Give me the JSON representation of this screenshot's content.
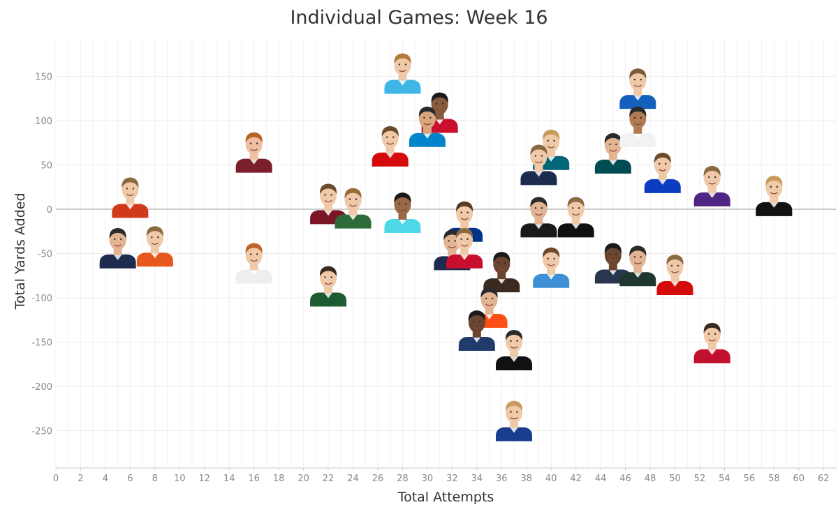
{
  "chart_data": {
    "type": "scatter",
    "title": "Individual Games: Week 16",
    "xlabel": "Total Attempts",
    "ylabel": "Total Yards Added",
    "xlim": [
      0,
      63
    ],
    "ylim": [
      -292,
      192
    ],
    "x_ticks": [
      0,
      2,
      4,
      6,
      8,
      10,
      12,
      14,
      16,
      18,
      20,
      22,
      24,
      26,
      28,
      30,
      32,
      34,
      36,
      38,
      40,
      42,
      44,
      46,
      48,
      50,
      52,
      54,
      56,
      58,
      60,
      62
    ],
    "y_ticks": [
      -250,
      -200,
      -150,
      -100,
      -50,
      0,
      50,
      100,
      150
    ],
    "grid": true,
    "zero_line": true,
    "marker": "player-headshot",
    "points": [
      {
        "x": 28,
        "y": 142,
        "jersey": "#3fb7e6",
        "skin": "#f0c9a8",
        "hair": "#b07a3c"
      },
      {
        "x": 31,
        "y": 98,
        "jersey": "#c8102e",
        "skin": "#8a5a3c",
        "hair": "#1a1a1a"
      },
      {
        "x": 30,
        "y": 82,
        "jersey": "#0085ca",
        "skin": "#d9a77f",
        "hair": "#2a2a2a"
      },
      {
        "x": 27,
        "y": 60,
        "jersey": "#d50a0a",
        "skin": "#f0c9a8",
        "hair": "#6b4b2a"
      },
      {
        "x": 16,
        "y": 53,
        "jersey": "#7a1f2b",
        "skin": "#eebfa0",
        "hair": "#b5651d"
      },
      {
        "x": 40,
        "y": 56,
        "jersey": "#006778",
        "skin": "#f0c9a8",
        "hair": "#c99a5b"
      },
      {
        "x": 39,
        "y": 39,
        "jersey": "#1d2b4f",
        "skin": "#f0c9a8",
        "hair": "#8a6a40"
      },
      {
        "x": 45,
        "y": 52,
        "jersey": "#004c54",
        "skin": "#e3b493",
        "hair": "#2a2a2a"
      },
      {
        "x": 47,
        "y": 125,
        "jersey": "#1560bd",
        "skin": "#f0c9a8",
        "hair": "#7a5a38"
      },
      {
        "x": 47,
        "y": 82,
        "jersey": "#f2f2f2",
        "skin": "#b07a55",
        "hair": "#2a2a2a"
      },
      {
        "x": 49,
        "y": 30,
        "jersey": "#0b3cc1",
        "skin": "#f0c9a8",
        "hair": "#6b4b2a"
      },
      {
        "x": 53,
        "y": 15,
        "jersey": "#4f2683",
        "skin": "#f0c9a8",
        "hair": "#8a6a40"
      },
      {
        "x": 58,
        "y": 4,
        "jersey": "#111111",
        "skin": "#f0c9a8",
        "hair": "#c99a5b"
      },
      {
        "x": 6,
        "y": 2,
        "jersey": "#d03a1c",
        "skin": "#f0c9a8",
        "hair": "#8a6a40"
      },
      {
        "x": 22,
        "y": -5,
        "jersey": "#7a1526",
        "skin": "#f0c9a8",
        "hair": "#6b4b2a"
      },
      {
        "x": 24,
        "y": -10,
        "jersey": "#2f6b3a",
        "skin": "#f0c9a8",
        "hair": "#9a6a3a"
      },
      {
        "x": 28,
        "y": -15,
        "jersey": "#4fd8e8",
        "skin": "#9a6a48",
        "hair": "#1a1a1a"
      },
      {
        "x": 33,
        "y": -25,
        "jersey": "#00338d",
        "skin": "#f0c9a8",
        "hair": "#5a3a22"
      },
      {
        "x": 39,
        "y": -20,
        "jersey": "#1a1a1a",
        "skin": "#e3b493",
        "hair": "#2a2a2a"
      },
      {
        "x": 42,
        "y": -20,
        "jersey": "#111111",
        "skin": "#f0c9a8",
        "hair": "#8a6a40"
      },
      {
        "x": 5,
        "y": -55,
        "jersey": "#1d2b4f",
        "skin": "#e3b493",
        "hair": "#2a2a2a"
      },
      {
        "x": 8,
        "y": -53,
        "jersey": "#e55a1c",
        "skin": "#f0c9a8",
        "hair": "#8a6a40"
      },
      {
        "x": 16,
        "y": -72,
        "jersey": "#eeeeee",
        "skin": "#f0c9a8",
        "hair": "#c0622a"
      },
      {
        "x": 32,
        "y": -57,
        "jersey": "#1d2b4f",
        "skin": "#e3b493",
        "hair": "#2a2a2a"
      },
      {
        "x": 33,
        "y": -55,
        "jersey": "#c8102e",
        "skin": "#f0c9a8",
        "hair": "#8a6a40"
      },
      {
        "x": 36,
        "y": -82,
        "jersey": "#3a2a20",
        "skin": "#6b4530",
        "hair": "#1a1a1a"
      },
      {
        "x": 40,
        "y": -77,
        "jersey": "#3e8fd6",
        "skin": "#f0c9a8",
        "hair": "#6b4b2a"
      },
      {
        "x": 45,
        "y": -72,
        "jersey": "#2a3550",
        "skin": "#6b4530",
        "hair": "#1a1a1a"
      },
      {
        "x": 47,
        "y": -75,
        "jersey": "#203731",
        "skin": "#e3b493",
        "hair": "#2a2a2a"
      },
      {
        "x": 50,
        "y": -85,
        "jersey": "#d50a0a",
        "skin": "#f0c9a8",
        "hair": "#8a6a40"
      },
      {
        "x": 22,
        "y": -98,
        "jersey": "#1e5a32",
        "skin": "#f0c9a8",
        "hair": "#3a2a20"
      },
      {
        "x": 35,
        "y": -122,
        "jersey": "#fb4f14",
        "skin": "#e3b493",
        "hair": "#2a2a2a"
      },
      {
        "x": 34,
        "y": -148,
        "jersey": "#203a6b",
        "skin": "#6b4530",
        "hair": "#1a1a1a"
      },
      {
        "x": 37,
        "y": -170,
        "jersey": "#111111",
        "skin": "#f0c9a8",
        "hair": "#2a2a2a"
      },
      {
        "x": 53,
        "y": -162,
        "jersey": "#c0102e",
        "skin": "#f0c9a8",
        "hair": "#3a2a20"
      },
      {
        "x": 37,
        "y": -250,
        "jersey": "#1a3c8f",
        "skin": "#f0c9a8",
        "hair": "#c99a5b"
      }
    ]
  }
}
